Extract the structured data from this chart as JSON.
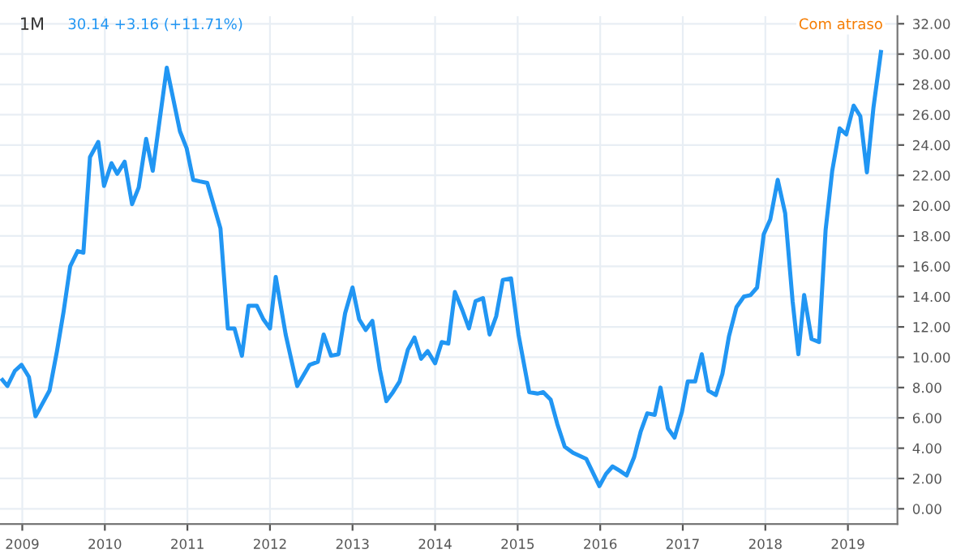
{
  "chart_data": {
    "type": "line",
    "title": "1M",
    "subtitle": "30.14 +3.16 (+11.71%)",
    "annotations": [
      "Com atraso"
    ],
    "x": [
      2008.76,
      2008.82,
      2008.91,
      2008.99,
      2009.08,
      2009.16,
      2009.24,
      2009.33,
      2009.42,
      2009.5,
      2009.58,
      2009.67,
      2009.74,
      2009.82,
      2009.92,
      2009.99,
      2010.08,
      2010.15,
      2010.24,
      2010.33,
      2010.41,
      2010.5,
      2010.58,
      2010.75,
      2010.91,
      2010.99,
      2011.07,
      2011.15,
      2011.24,
      2011.4,
      2011.49,
      2011.57,
      2011.66,
      2011.74,
      2011.84,
      2011.92,
      2012.0,
      2012.07,
      2012.19,
      2012.33,
      2012.48,
      2012.58,
      2012.65,
      2012.74,
      2012.83,
      2012.91,
      2013.0,
      2013.08,
      2013.16,
      2013.24,
      2013.33,
      2013.41,
      2013.49,
      2013.57,
      2013.67,
      2013.75,
      2013.83,
      2013.91,
      2014.0,
      2014.08,
      2014.16,
      2014.24,
      2014.33,
      2014.41,
      2014.49,
      2014.58,
      2014.66,
      2014.74,
      2014.82,
      2014.92,
      2015.01,
      2015.14,
      2015.24,
      2015.31,
      2015.4,
      2015.48,
      2015.57,
      2015.67,
      2015.83,
      2015.99,
      2016.07,
      2016.15,
      2016.24,
      2016.32,
      2016.41,
      2016.49,
      2016.57,
      2016.66,
      2016.73,
      2016.82,
      2016.9,
      2016.99,
      2017.06,
      2017.15,
      2017.23,
      2017.31,
      2017.4,
      2017.48,
      2017.56,
      2017.65,
      2017.74,
      2017.82,
      2017.9,
      2017.98,
      2018.06,
      2018.15,
      2018.24,
      2018.33,
      2018.4,
      2018.47,
      2018.56,
      2018.65,
      2018.73,
      2018.81,
      2018.9,
      2018.98,
      2019.07,
      2019.15,
      2019.23,
      2019.31,
      2019.4
    ],
    "series": [
      {
        "color": "#2196f3",
        "values": [
          8.5,
          8.1,
          9.1,
          9.5,
          8.7,
          6.1,
          6.9,
          7.8,
          10.4,
          13.0,
          16.0,
          17.0,
          16.9,
          23.2,
          24.2,
          21.3,
          22.8,
          22.1,
          22.9,
          20.1,
          21.2,
          24.4,
          22.3,
          29.1,
          24.9,
          23.8,
          21.7,
          21.6,
          21.5,
          18.5,
          11.9,
          11.9,
          10.1,
          13.4,
          13.4,
          12.5,
          11.9,
          15.3,
          11.5,
          8.1,
          9.5,
          9.7,
          11.5,
          10.1,
          10.2,
          12.9,
          14.6,
          12.5,
          11.8,
          12.4,
          9.2,
          7.1,
          7.7,
          8.4,
          10.5,
          11.3,
          9.9,
          10.4,
          9.6,
          11.0,
          10.9,
          14.3,
          13.1,
          11.9,
          13.7,
          13.9,
          11.5,
          12.7,
          15.1,
          15.2,
          11.5,
          7.7,
          7.6,
          7.7,
          7.2,
          5.6,
          4.1,
          3.7,
          3.3,
          1.5,
          2.3,
          2.8,
          2.5,
          2.2,
          3.4,
          5.1,
          6.3,
          6.2,
          8.0,
          5.3,
          4.7,
          6.4,
          8.4,
          8.4,
          10.2,
          7.8,
          7.5,
          8.9,
          11.4,
          13.3,
          14.0,
          14.1,
          14.6,
          18.1,
          19.1,
          21.7,
          19.5,
          13.7,
          10.2,
          14.1,
          11.2,
          11.0,
          18.4,
          22.3,
          25.1,
          24.7,
          26.6,
          25.9,
          22.2,
          26.5,
          30.14
        ]
      }
    ],
    "xlim": [
      2008.73,
      2019.6
    ],
    "xticks": [
      2009,
      2010,
      2011,
      2012,
      2013,
      2014,
      2015,
      2016,
      2017,
      2018,
      2019
    ],
    "ylim": [
      -1,
      32.5
    ],
    "yticks": [
      {
        "value": 0,
        "label": "0.00"
      },
      {
        "value": 2,
        "label": "2.00"
      },
      {
        "value": 4,
        "label": "4.00"
      },
      {
        "value": 6,
        "label": "6.00"
      },
      {
        "value": 8,
        "label": "8.00"
      },
      {
        "value": 10,
        "label": "10.00"
      },
      {
        "value": 12,
        "label": "12.00"
      },
      {
        "value": 14,
        "label": "14.00"
      },
      {
        "value": 16,
        "label": "16.00"
      },
      {
        "value": 18,
        "label": "18.00"
      },
      {
        "value": 20,
        "label": "20.00"
      },
      {
        "value": 22,
        "label": "22.00"
      },
      {
        "value": 24,
        "label": "24.00"
      },
      {
        "value": 26,
        "label": "26.00"
      },
      {
        "value": 28,
        "label": "28.00"
      },
      {
        "value": 30,
        "label": "30.00"
      },
      {
        "value": 32,
        "label": "32.00"
      }
    ],
    "grid": true,
    "marker": "none",
    "line_style": "solid"
  }
}
